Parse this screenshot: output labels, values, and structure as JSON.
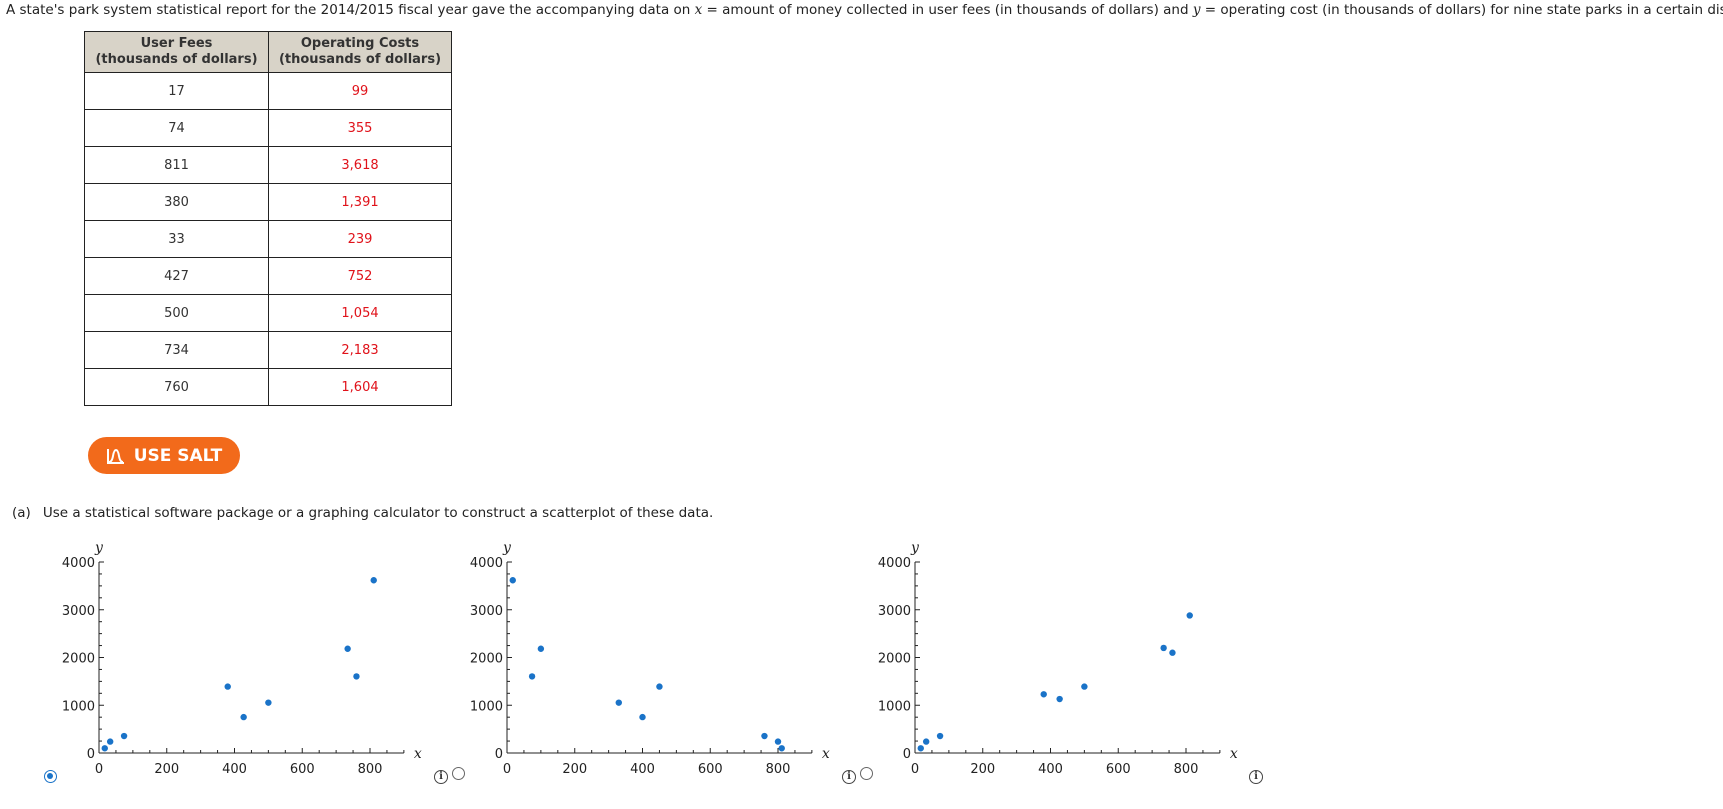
{
  "intro": {
    "t1": "A state's park system statistical report for the 2014/2015 fiscal year gave the accompanying data on ",
    "xvar": "x",
    "t2": " = amount of money collected in user fees (in thousands of dollars) and ",
    "yvar": "y",
    "t3": " = operating cost (in thousands of dollars) for nine state parks in a certain district."
  },
  "table": {
    "headers": [
      {
        "line1": "User Fees",
        "line2": "(thousands of dollars)"
      },
      {
        "line1": "Operating Costs",
        "line2": "(thousands of dollars)"
      }
    ],
    "rows": [
      {
        "x": "17",
        "y": "99"
      },
      {
        "x": "74",
        "y": "355"
      },
      {
        "x": "811",
        "y": "3,618"
      },
      {
        "x": "380",
        "y": "1,391"
      },
      {
        "x": "33",
        "y": "239"
      },
      {
        "x": "427",
        "y": "752"
      },
      {
        "x": "500",
        "y": "1,054"
      },
      {
        "x": "734",
        "y": "2,183"
      },
      {
        "x": "760",
        "y": "1,604"
      }
    ],
    "colors": {
      "header_bg": "#d8d3c8",
      "y_text": "#e0121a"
    }
  },
  "salt_button": {
    "label": "USE SALT",
    "icon": "salt-icon",
    "color": "#f26a1b"
  },
  "part_a": {
    "label": "(a)",
    "text": "Use a statistical software package or a graphing calculator to construct a scatterplot of these data."
  },
  "chart_data": [
    {
      "type": "scatter",
      "xlabel": "x",
      "ylabel": "y",
      "xlim": [
        0,
        900
      ],
      "ylim": [
        0,
        4000
      ],
      "xticks": [
        0,
        200,
        400,
        600,
        800
      ],
      "yticks": [
        0,
        1000,
        2000,
        3000,
        4000
      ],
      "x": [
        17,
        74,
        811,
        380,
        33,
        427,
        500,
        734,
        760
      ],
      "y": [
        99,
        355,
        3618,
        1391,
        239,
        752,
        1054,
        2183,
        1604
      ],
      "point_color": "#1a73c8",
      "selected": true
    },
    {
      "type": "scatter",
      "xlabel": "x",
      "ylabel": "y",
      "xlim": [
        0,
        900
      ],
      "ylim": [
        0,
        4000
      ],
      "xticks": [
        0,
        200,
        400,
        600,
        800
      ],
      "yticks": [
        0,
        1000,
        2000,
        3000,
        4000
      ],
      "x": [
        17,
        74,
        100,
        330,
        400,
        450,
        760,
        800,
        811
      ],
      "y": [
        3618,
        1604,
        2183,
        1054,
        752,
        1391,
        355,
        239,
        99
      ],
      "point_color": "#1a73c8",
      "selected": false
    },
    {
      "type": "scatter",
      "xlabel": "x",
      "ylabel": "y",
      "xlim": [
        0,
        900
      ],
      "ylim": [
        0,
        4000
      ],
      "xticks": [
        0,
        200,
        400,
        600,
        800
      ],
      "yticks": [
        0,
        1000,
        2000,
        3000,
        4000
      ],
      "x": [
        17,
        33,
        74,
        380,
        427,
        500,
        734,
        760,
        811
      ],
      "y": [
        99,
        239,
        355,
        1230,
        1130,
        1391,
        2200,
        2100,
        2880
      ],
      "point_color": "#1a73c8",
      "selected": false
    }
  ],
  "icons": {
    "info": "info-icon",
    "radio": "radio-button"
  },
  "info_glyph": "i"
}
